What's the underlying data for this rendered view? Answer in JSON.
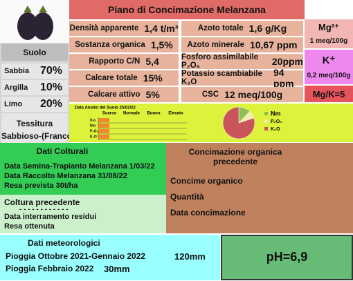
{
  "header": {
    "title": "Piano di Concimazione Melanzana"
  },
  "suolo": {
    "title": "Suolo",
    "rows": [
      {
        "label": "Sabbia",
        "value": "70%"
      },
      {
        "label": "Argilla",
        "value": "10%"
      },
      {
        "label": "Limo",
        "value": "20%"
      }
    ],
    "tessitura_label": "Tessitura",
    "tessitura": "Sabbioso-(Franco)"
  },
  "properties": {
    "left": [
      {
        "label": "Densità apparente",
        "value": "1,4 t/m³"
      },
      {
        "label": "Sostanza organica",
        "value": "1,5%"
      },
      {
        "label": "Rapporto C/N",
        "value": "5,4"
      },
      {
        "label": "Calcare totale",
        "value": "15%"
      },
      {
        "label": "Calcare attivo",
        "value": "5%"
      }
    ],
    "right": [
      {
        "label": "Azoto totale",
        "value": "1,6 g/Kg"
      },
      {
        "label": "Azoto minerale",
        "value": "10,67 ppm"
      },
      {
        "label": "Fosforo assimilabile P₂O₅",
        "value": "20ppm"
      },
      {
        "label": "Potassio scambiabile K₂O",
        "value": "94 ppm"
      },
      {
        "label": "CSC",
        "value": "12 meq/100g"
      }
    ]
  },
  "ions": {
    "mg": {
      "label": "Mg²⁺",
      "value": "1 meq/100g"
    },
    "k": {
      "label": "K⁺",
      "value": "0,2 meq/100g"
    },
    "ratio": "Mg/K=5"
  },
  "analysis": {
    "title": "Data Analisi del Suolo 25/02/22",
    "bars": {
      "levels": [
        "Scarso",
        "Normale",
        "Buono",
        "Elevato"
      ],
      "categories": [
        "S.o.",
        "Nm",
        "P₂O₅",
        "K₂O"
      ],
      "values": [
        0.5,
        0.5,
        0.5,
        0.5
      ],
      "xlim": [
        0,
        4
      ],
      "color": "#f08a2c"
    },
    "pie": {
      "categories": [
        "Nm",
        "P₂O₅",
        "K₂O"
      ],
      "values": [
        12,
        8,
        80
      ],
      "colors": [
        "#8fbf4f",
        "#f2ecae",
        "#c9545a"
      ]
    }
  },
  "colturali": {
    "title": "Dati Colturali",
    "rows": [
      "Data Semina-Trapianto Melanzana   1/03/22",
      "Data Raccolto Melanzana  31/08/22",
      "Resa prevista  30t/ha"
    ]
  },
  "precedente": {
    "title": "Coltura precedente",
    "dashes": "- - - - - - - - - - - -",
    "rows": [
      "Data interramento residui",
      "Resa ottenuta"
    ]
  },
  "organica": {
    "title": "Concimazione organica precedente",
    "rows": [
      "Concime organico",
      "Quantità",
      "Data concimazione"
    ]
  },
  "meteo": {
    "title": "Dati meteorologici",
    "rows": [
      {
        "label": "Pioggia Ottobre 2021-Gennaio 2022",
        "value": "120mm"
      },
      {
        "label": "Pioggia Febbraio  2022",
        "value": "30mm"
      }
    ]
  },
  "ph": "pH=6,9"
}
